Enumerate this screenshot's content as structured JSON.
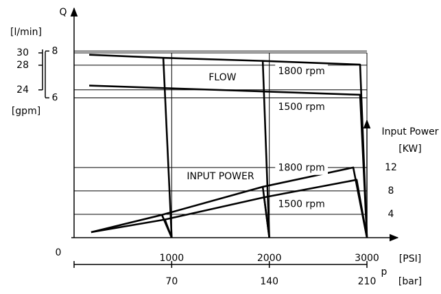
{
  "chart_data": {
    "type": "line",
    "y_label": "Q",
    "y_unit": "[l/min]",
    "y_gpm_unit": "[gpm]",
    "x_unit": "[PSI]",
    "x_label": "p",
    "x2_unit": "[bar]",
    "origin_label": "0",
    "y2_label": "Input Power",
    "y2_unit": "[KW]",
    "xlim": [
      0,
      3000
    ],
    "xticks": [
      1000,
      2000,
      3000
    ],
    "x2lim": [
      0,
      210
    ],
    "x2ticks": [
      70,
      140,
      210
    ],
    "ylim": [
      0,
      30
    ],
    "yticks": [
      30,
      28,
      24
    ],
    "ygpm_ticks": [
      {
        "value": 30.3,
        "label": "8"
      },
      {
        "value": 22.7,
        "label": "6"
      }
    ],
    "y2lim": [
      0,
      31.6
    ],
    "y2ticks": [
      12,
      8,
      4
    ],
    "annotations": [
      {
        "text": "FLOW",
        "x": 1520,
        "y": 26.0
      },
      {
        "text": "1800 rpm",
        "x": 2330,
        "y": 27.0
      },
      {
        "text": "1500 rpm",
        "x": 2330,
        "y": 21.2
      },
      {
        "text": "INPUT POWER",
        "x": 1500,
        "y": 9.9
      },
      {
        "text": "1800 rpm",
        "x": 2330,
        "y": 11.3
      },
      {
        "text": "1500 rpm",
        "x": 2330,
        "y": 5.4
      }
    ],
    "grid": true,
    "color": "#000000",
    "series": [
      {
        "x": [
          155,
          914,
          1000
        ],
        "values": [
          29.7,
          29.2,
          0
        ],
        "axis": "y"
      },
      {
        "x": [
          914,
          1933,
          2000
        ],
        "values": [
          29.2,
          28.7,
          0
        ],
        "axis": "y"
      },
      {
        "x": [
          1933,
          2930,
          3000
        ],
        "values": [
          28.7,
          28.1,
          0
        ],
        "axis": "y"
      },
      {
        "x": [
          155,
          2930,
          3000
        ],
        "values": [
          24.7,
          23.2,
          0
        ],
        "axis": "y"
      },
      {
        "x": [
          175,
          900,
          1000
        ],
        "values": [
          0.94,
          3.9,
          0
        ],
        "axis": "y2"
      },
      {
        "x": [
          900,
          1933,
          2000
        ],
        "values": [
          3.9,
          8.7,
          0
        ],
        "axis": "y2"
      },
      {
        "x": [
          1933,
          2860,
          3000
        ],
        "values": [
          8.7,
          12,
          0
        ],
        "axis": "y2"
      },
      {
        "x": [
          175,
          930,
          1000
        ],
        "values": [
          0.94,
          3.1,
          0
        ],
        "axis": "y2"
      },
      {
        "x": [
          930,
          1947,
          2000
        ],
        "values": [
          3.1,
          6.9,
          0
        ],
        "axis": "y2"
      },
      {
        "x": [
          1947,
          2895,
          3000
        ],
        "values": [
          6.9,
          9.9,
          0
        ],
        "axis": "y2"
      }
    ]
  }
}
